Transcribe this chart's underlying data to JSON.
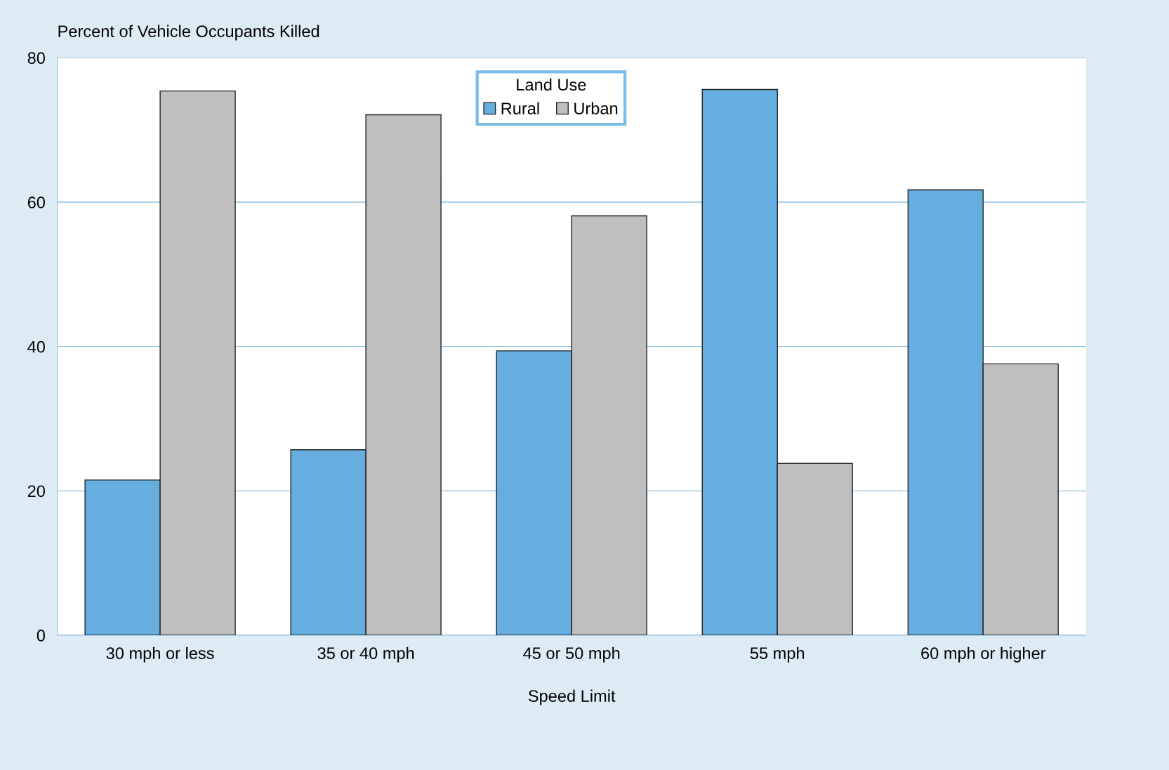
{
  "chart_data": {
    "type": "bar",
    "categories": [
      "30 mph or less",
      "35 or 40 mph",
      "45 or 50 mph",
      "55 mph",
      "60 mph or higher"
    ],
    "series": [
      {
        "name": "Rural",
        "color": "#67aee0",
        "values": [
          21.5,
          25.7,
          39.4,
          75.6,
          61.7
        ]
      },
      {
        "name": "Urban",
        "color": "#bfbfbf",
        "values": [
          75.4,
          72.1,
          58.1,
          23.8,
          37.6
        ]
      }
    ],
    "xlabel": "Speed Limit",
    "ylabel": "Percent of Vehicle Occupants Killed",
    "legend_title": "Land Use",
    "legend": "top",
    "ylim": [
      0,
      80
    ],
    "yticks": [
      0,
      20,
      40,
      60,
      80
    ],
    "grid": "y"
  }
}
